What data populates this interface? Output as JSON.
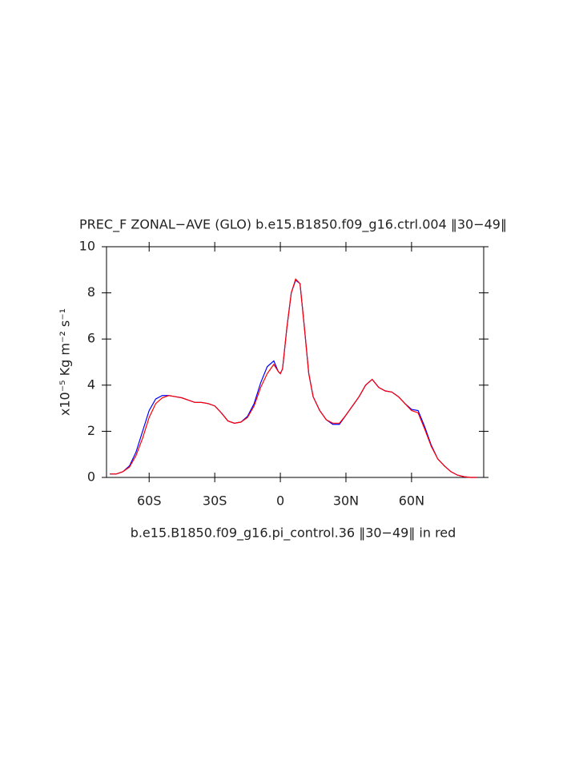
{
  "chart_data": {
    "type": "line",
    "title": "PREC_F ZONAL−AVE (GLO) b.e15.B1850.f09_g16.ctrl.004 ‖30−49‖",
    "xlabel": "b.e15.B1850.f09_g16.pi_control.36 ‖30−49‖ in red",
    "ylabel": "x10⁻⁵ Kg m⁻² s⁻¹",
    "x": [
      -78,
      -75,
      -72,
      -69,
      -66,
      -63,
      -60,
      -57,
      -54,
      -51,
      -48,
      -45,
      -42,
      -39,
      -36,
      -33,
      -30,
      -27,
      -24,
      -21,
      -18,
      -15,
      -12,
      -9,
      -6,
      -3,
      -1,
      0,
      1,
      3,
      5,
      7,
      9,
      11,
      13,
      15,
      18,
      21,
      24,
      27,
      30,
      33,
      36,
      39,
      42,
      45,
      48,
      51,
      54,
      57,
      60,
      63,
      66,
      69,
      72,
      75,
      78,
      81,
      84,
      87,
      90
    ],
    "series": [
      {
        "name": "ctrl",
        "color": "#0000ff",
        "values": [
          0.15,
          0.15,
          0.25,
          0.5,
          1.1,
          2.0,
          2.9,
          3.4,
          3.55,
          3.55,
          3.5,
          3.45,
          3.35,
          3.25,
          3.25,
          3.2,
          3.1,
          2.8,
          2.45,
          2.35,
          2.4,
          2.65,
          3.2,
          4.1,
          4.8,
          5.05,
          4.6,
          4.5,
          4.7,
          6.5,
          8.0,
          8.55,
          8.4,
          6.5,
          4.5,
          3.5,
          2.9,
          2.5,
          2.3,
          2.3,
          2.7,
          3.1,
          3.5,
          4.0,
          4.25,
          3.9,
          3.75,
          3.7,
          3.5,
          3.2,
          2.95,
          2.9,
          2.2,
          1.4,
          0.8,
          0.5,
          0.25,
          0.1,
          0.03,
          0.0,
          0.0
        ]
      },
      {
        "name": "pi_control",
        "color": "#ff0000",
        "values": [
          0.15,
          0.15,
          0.25,
          0.45,
          0.95,
          1.7,
          2.6,
          3.2,
          3.45,
          3.55,
          3.5,
          3.45,
          3.35,
          3.25,
          3.25,
          3.2,
          3.1,
          2.8,
          2.45,
          2.35,
          2.4,
          2.6,
          3.1,
          3.9,
          4.5,
          4.9,
          4.6,
          4.5,
          4.7,
          6.5,
          8.0,
          8.6,
          8.4,
          6.5,
          4.5,
          3.5,
          2.9,
          2.5,
          2.35,
          2.35,
          2.7,
          3.1,
          3.5,
          4.0,
          4.25,
          3.9,
          3.75,
          3.7,
          3.5,
          3.2,
          2.9,
          2.8,
          2.1,
          1.35,
          0.8,
          0.5,
          0.25,
          0.1,
          0.03,
          0.0,
          0.0
        ]
      }
    ],
    "xlim": [
      -79.5,
      93
    ],
    "xticks": [
      {
        "value": -60,
        "label": "60S"
      },
      {
        "value": -30,
        "label": "30S"
      },
      0,
      {
        "value": 30,
        "label": "30N"
      },
      {
        "value": 60,
        "label": "60N"
      }
    ],
    "ylim": [
      0,
      10
    ],
    "yticks": [
      0,
      2,
      4,
      6,
      8,
      10
    ]
  }
}
